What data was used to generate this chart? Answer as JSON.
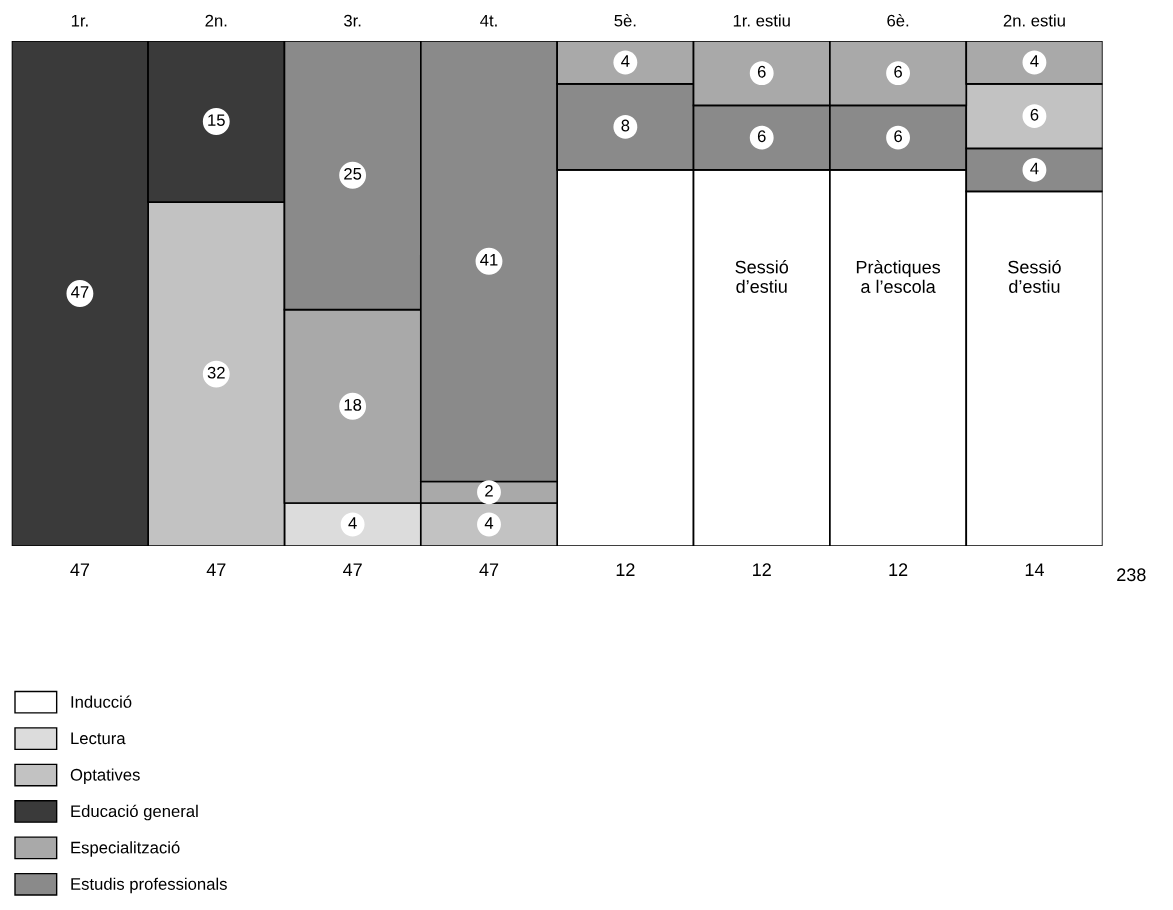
{
  "chart_data": {
    "type": "bar",
    "stacked": true,
    "categories": [
      "1r.",
      "2n.",
      "3r.",
      "4t.",
      "5è.",
      "1r. estiu",
      "6è.",
      "2n. estiu"
    ],
    "series": [
      {
        "name": "Inducció",
        "color": "#ffffff",
        "values": [
          null,
          null,
          null,
          null,
          35,
          35,
          35,
          33
        ]
      },
      {
        "name": "Lectura",
        "color": "#dcdcdc",
        "values": [
          null,
          null,
          4,
          null,
          null,
          null,
          null,
          null
        ],
        "value_labels": [
          null,
          null,
          "4",
          null,
          null,
          null,
          null,
          null
        ]
      },
      {
        "name": "Optatives",
        "color": "#c2c2c2",
        "values": [
          null,
          32,
          null,
          4,
          null,
          null,
          null,
          null
        ],
        "value_labels": [
          null,
          "32",
          null,
          "4",
          null,
          null,
          null,
          null
        ]
      },
      {
        "name": "Educació general",
        "color": "#3a3a3a",
        "values": [
          47,
          15,
          null,
          null,
          null,
          null,
          null,
          null
        ],
        "value_labels": [
          "47",
          "15",
          null,
          null,
          null,
          null,
          null,
          null
        ]
      },
      {
        "name": "Especialització",
        "color": "#a9a9a9",
        "values": [
          null,
          null,
          18,
          2,
          null,
          null,
          null,
          null
        ],
        "value_labels": [
          null,
          null,
          "18",
          "2",
          null,
          null,
          null,
          null
        ]
      },
      {
        "name": "Estudis professionals",
        "color": "#8a8a8a",
        "values": [
          null,
          null,
          25,
          41,
          8,
          6,
          6,
          4
        ],
        "value_labels": [
          null,
          null,
          "25",
          "41",
          "8",
          "6",
          "6",
          "4"
        ]
      },
      {
        "color": "#c2c2c2",
        "values": [
          null,
          null,
          null,
          null,
          null,
          null,
          null,
          6
        ],
        "value_labels": [
          null,
          null,
          null,
          null,
          null,
          null,
          null,
          "6"
        ]
      },
      {
        "color": "#a9a9a9",
        "values": [
          null,
          null,
          null,
          null,
          4,
          6,
          6,
          4
        ],
        "value_labels": [
          null,
          null,
          null,
          null,
          "4",
          "6",
          "6",
          "4"
        ]
      }
    ],
    "annotations": [
      "47",
      "47",
      "47",
      "47",
      "12",
      "12",
      "12",
      "14",
      "238",
      "Sessió\nd’estiu",
      "Pràctiques\na l’escola",
      "Sessió\nd’estiu"
    ],
    "legend": "bottom left"
  }
}
